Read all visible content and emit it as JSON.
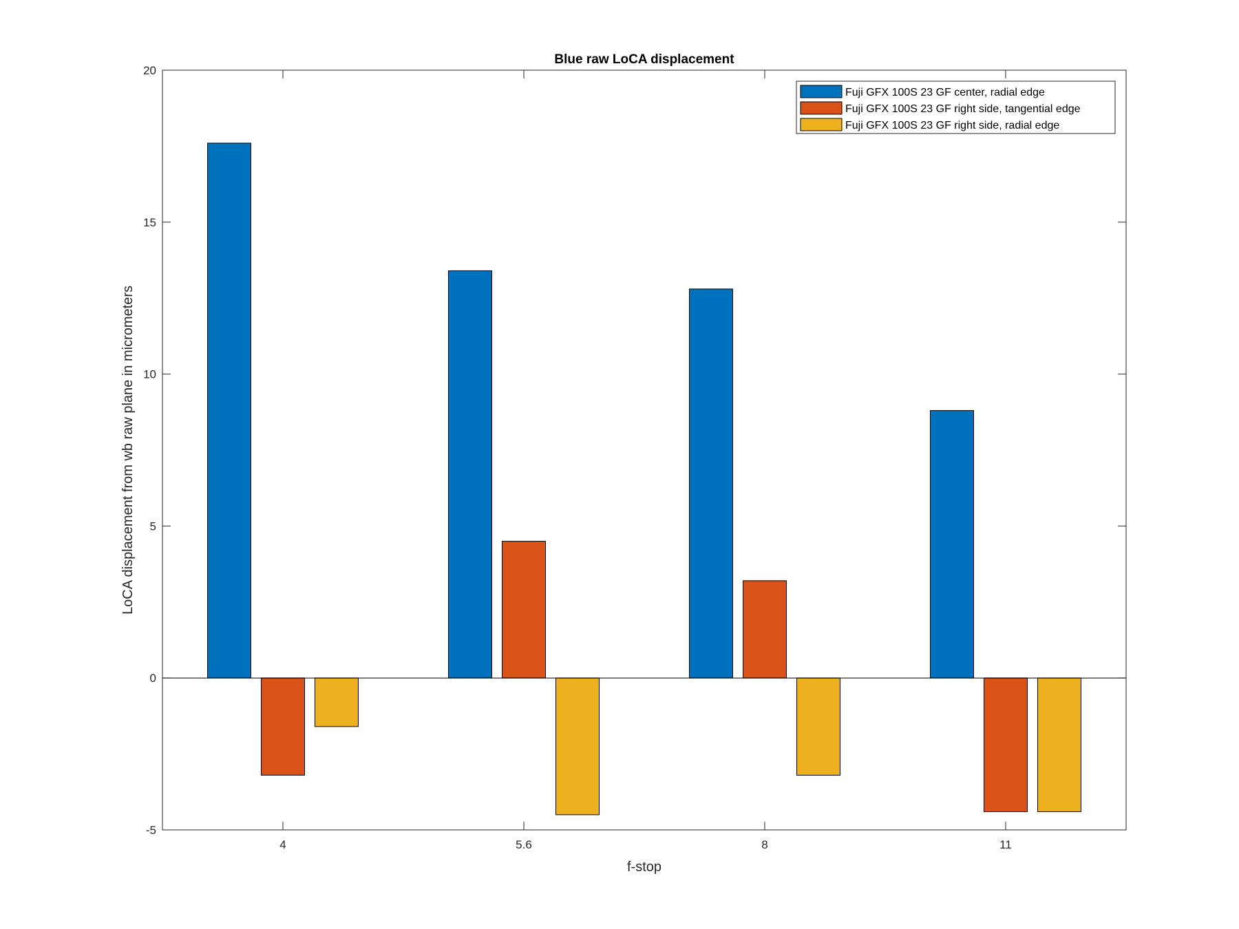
{
  "chart_data": {
    "type": "bar",
    "title": "Blue raw  LoCA displacement",
    "xlabel": "f-stop",
    "ylabel": "LoCA displacement from wb raw plane in micrometers",
    "categories": [
      "4",
      "5.6",
      "8",
      "11"
    ],
    "ylim": [
      -5,
      20
    ],
    "yticks": [
      -5,
      0,
      5,
      10,
      15,
      20
    ],
    "grid": false,
    "legend_position": "top-right",
    "series": [
      {
        "name": "Fuji GFX 100S 23 GF center, radial edge",
        "color": "#0072BD",
        "values": [
          17.6,
          13.4,
          12.8,
          8.8
        ]
      },
      {
        "name": "Fuji GFX 100S 23 GF right side, tangential edge",
        "color": "#D95319",
        "values": [
          -3.2,
          4.5,
          3.2,
          -4.4
        ]
      },
      {
        "name": "Fuji GFX 100S 23 GF right side, radial edge",
        "color": "#EDB120",
        "values": [
          -1.6,
          -4.5,
          -3.2,
          -4.4
        ]
      }
    ]
  }
}
